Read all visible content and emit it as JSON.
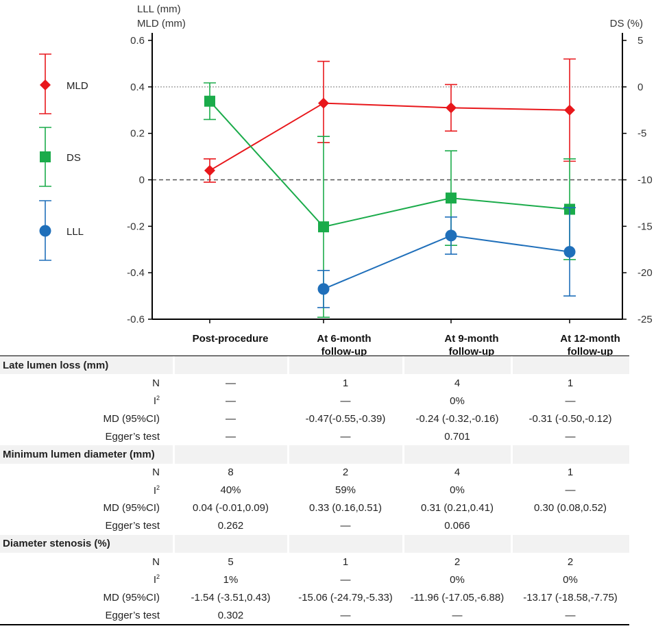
{
  "chart_data": {
    "type": "line",
    "categories": [
      "Post-procedure",
      "At 6-month follow-up",
      "At 9-month follow-up",
      "At 12-month follow-up"
    ],
    "category_lines": [
      [
        "Post-procedure"
      ],
      [
        "At 6-month",
        "follow-up"
      ],
      [
        "At 9-month",
        "follow-up"
      ],
      [
        "At 12-month",
        "follow-up"
      ]
    ],
    "left_axis_label": [
      "LLL (mm)",
      "MLD (mm)"
    ],
    "right_axis_label": "DS (%)",
    "left_ylim": [
      -0.6,
      0.6
    ],
    "left_ticks": [
      "-0.6",
      "-0.4",
      "-0.2",
      "0",
      "0.2",
      "0.4",
      "0.6"
    ],
    "right_ylim": [
      -25,
      5
    ],
    "right_ticks": [
      "-25",
      "-20",
      "-15",
      "-10",
      "-5",
      "0",
      "5"
    ],
    "reference_lines": [
      {
        "axis": "left",
        "value": 0,
        "style": "dashed"
      },
      {
        "axis": "right",
        "value": 0,
        "style": "dotted"
      }
    ],
    "series": [
      {
        "name": "MLD",
        "axis": "left",
        "color": "#e8171b",
        "marker": "diamond",
        "points": [
          {
            "cat": 0,
            "value": 0.04,
            "lo": -0.01,
            "hi": 0.09
          },
          {
            "cat": 1,
            "value": 0.33,
            "lo": 0.16,
            "hi": 0.51
          },
          {
            "cat": 2,
            "value": 0.31,
            "lo": 0.21,
            "hi": 0.41
          },
          {
            "cat": 3,
            "value": 0.3,
            "lo": 0.08,
            "hi": 0.52
          }
        ]
      },
      {
        "name": "DS",
        "axis": "right",
        "color": "#1aab4a",
        "marker": "square",
        "points": [
          {
            "cat": 0,
            "value": -1.54,
            "lo": -3.51,
            "hi": 0.43
          },
          {
            "cat": 1,
            "value": -15.06,
            "lo": -24.79,
            "hi": -5.33
          },
          {
            "cat": 2,
            "value": -11.96,
            "lo": -17.05,
            "hi": -6.88
          },
          {
            "cat": 3,
            "value": -13.17,
            "lo": -18.58,
            "hi": -7.75
          }
        ]
      },
      {
        "name": "LLL",
        "axis": "left",
        "color": "#1f6fba",
        "marker": "circle",
        "points": [
          {
            "cat": 1,
            "value": -0.47,
            "lo": -0.55,
            "hi": -0.39
          },
          {
            "cat": 2,
            "value": -0.24,
            "lo": -0.32,
            "hi": -0.16
          },
          {
            "cat": 3,
            "value": -0.31,
            "lo": -0.5,
            "hi": -0.12
          }
        ]
      }
    ],
    "legend": [
      "MLD",
      "DS",
      "LLL"
    ]
  },
  "table": {
    "sections": [
      {
        "title": "Late lumen loss (mm)",
        "rows": [
          {
            "label": "N",
            "values": [
              "—",
              "1",
              "4",
              "1"
            ]
          },
          {
            "label": "I2",
            "values": [
              "—",
              "—",
              "0%",
              "—"
            ]
          },
          {
            "label": "MD (95%CI)",
            "values": [
              "—",
              "-0.47(-0.55,-0.39)",
              "-0.24 (-0.32,-0.16)",
              "-0.31 (-0.50,-0.12)"
            ]
          },
          {
            "label": "Egger’s test",
            "values": [
              "—",
              "—",
              "0.701",
              "—"
            ]
          }
        ]
      },
      {
        "title": "Minimum lumen diameter (mm)",
        "rows": [
          {
            "label": "N",
            "values": [
              "8",
              "2",
              "4",
              "1"
            ]
          },
          {
            "label": "I2",
            "values": [
              "40%",
              "59%",
              "0%",
              "—"
            ]
          },
          {
            "label": "MD (95%CI)",
            "values": [
              "0.04 (-0.01,0.09)",
              "0.33 (0.16,0.51)",
              "0.31 (0.21,0.41)",
              "0.30 (0.08,0.52)"
            ]
          },
          {
            "label": "Egger’s test",
            "values": [
              "0.262",
              "—",
              "0.066",
              ""
            ]
          }
        ]
      },
      {
        "title": "Diameter stenosis (%)",
        "rows": [
          {
            "label": "N",
            "values": [
              "5",
              "1",
              "2",
              "2"
            ]
          },
          {
            "label": "I2",
            "values": [
              "1%",
              "—",
              "0%",
              "0%"
            ]
          },
          {
            "label": "MD (95%CI)",
            "values": [
              "-1.54 (-3.51,0.43)",
              "-15.06 (-24.79,-5.33)",
              "-11.96 (-17.05,-6.88)",
              "-13.17 (-18.58,-7.75)"
            ]
          },
          {
            "label": "Egger’s test",
            "values": [
              "0.302",
              "—",
              "—",
              "—"
            ]
          }
        ]
      }
    ]
  }
}
